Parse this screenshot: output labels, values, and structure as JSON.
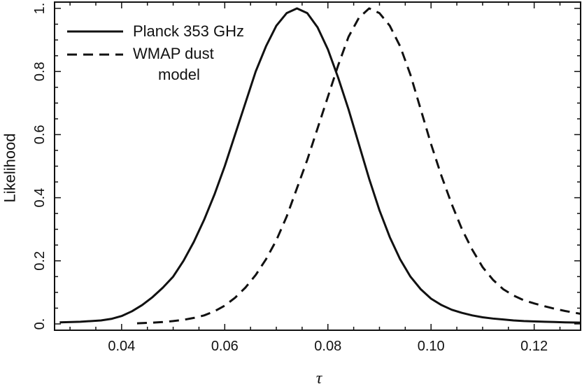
{
  "chart_data": {
    "type": "line",
    "title": "",
    "xlabel": "τ",
    "ylabel": "Likelihood",
    "xlim": [
      0.027,
      0.129
    ],
    "ylim": [
      -0.02,
      1.02
    ],
    "grid": false,
    "legend_position": "top-left",
    "x_ticks": [
      0.04,
      0.06,
      0.08,
      0.1,
      0.12
    ],
    "x_tick_labels": [
      "0.04",
      "0.06",
      "0.08",
      "0.10",
      "0.12"
    ],
    "y_ticks": [
      0.0,
      0.2,
      0.4,
      0.6,
      0.8,
      1.0
    ],
    "y_tick_labels": [
      "0.",
      "0.2",
      "0.4",
      "0.6",
      "0.8",
      "1."
    ],
    "series": [
      {
        "name": "Planck 353 GHz",
        "linestyle": "solid",
        "color": "#111111",
        "x": [
          0.028,
          0.032,
          0.036,
          0.038,
          0.04,
          0.042,
          0.044,
          0.046,
          0.048,
          0.05,
          0.052,
          0.054,
          0.056,
          0.058,
          0.06,
          0.062,
          0.064,
          0.066,
          0.068,
          0.07,
          0.072,
          0.074,
          0.076,
          0.078,
          0.08,
          0.082,
          0.084,
          0.086,
          0.088,
          0.09,
          0.092,
          0.094,
          0.096,
          0.098,
          0.1,
          0.102,
          0.104,
          0.106,
          0.108,
          0.11,
          0.112,
          0.114,
          0.116,
          0.118,
          0.12,
          0.122,
          0.124,
          0.126,
          0.129
        ],
        "y": [
          0.005,
          0.007,
          0.011,
          0.016,
          0.025,
          0.04,
          0.06,
          0.085,
          0.115,
          0.15,
          0.2,
          0.26,
          0.33,
          0.41,
          0.5,
          0.6,
          0.7,
          0.8,
          0.88,
          0.945,
          0.985,
          1.0,
          0.985,
          0.94,
          0.87,
          0.78,
          0.68,
          0.57,
          0.46,
          0.36,
          0.275,
          0.205,
          0.15,
          0.11,
          0.08,
          0.06,
          0.045,
          0.035,
          0.027,
          0.021,
          0.017,
          0.014,
          0.011,
          0.009,
          0.008,
          0.007,
          0.006,
          0.005,
          0.004
        ]
      },
      {
        "name": "WMAP dust model",
        "linestyle": "dashed",
        "color": "#111111",
        "x": [
          0.043,
          0.046,
          0.048,
          0.05,
          0.052,
          0.054,
          0.056,
          0.058,
          0.06,
          0.062,
          0.064,
          0.066,
          0.068,
          0.07,
          0.072,
          0.074,
          0.076,
          0.078,
          0.08,
          0.082,
          0.084,
          0.086,
          0.088,
          0.09,
          0.092,
          0.094,
          0.096,
          0.098,
          0.1,
          0.102,
          0.104,
          0.106,
          0.108,
          0.11,
          0.112,
          0.114,
          0.116,
          0.118,
          0.12,
          0.122,
          0.124,
          0.126,
          0.129
        ],
        "y": [
          0.002,
          0.004,
          0.006,
          0.009,
          0.013,
          0.019,
          0.027,
          0.04,
          0.058,
          0.083,
          0.115,
          0.155,
          0.205,
          0.265,
          0.34,
          0.43,
          0.52,
          0.62,
          0.72,
          0.82,
          0.91,
          0.97,
          1.0,
          0.985,
          0.945,
          0.88,
          0.79,
          0.68,
          0.57,
          0.47,
          0.38,
          0.3,
          0.235,
          0.18,
          0.14,
          0.11,
          0.09,
          0.075,
          0.065,
          0.056,
          0.048,
          0.041,
          0.032
        ]
      }
    ]
  }
}
